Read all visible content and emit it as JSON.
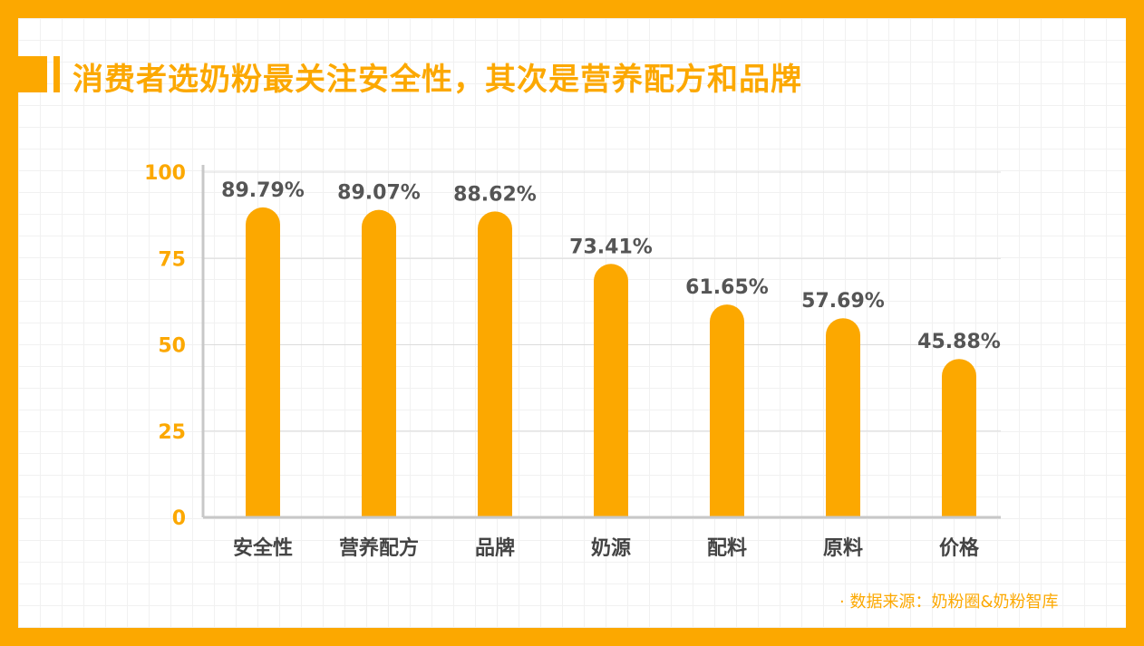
{
  "title": "消费者选奶粉最关注安全性，其次是营养配方和品牌",
  "source": "· 数据来源：奶粉圈&奶粉智库",
  "colors": {
    "accent": "#fca800",
    "label": "#555555",
    "axis": "#c8c8c8"
  },
  "chart_data": {
    "type": "bar",
    "title": "消费者选奶粉最关注安全性，其次是营养配方和品牌",
    "categories": [
      "安全性",
      "营养配方",
      "品牌",
      "奶源",
      "配料",
      "原料",
      "价格"
    ],
    "values": [
      89.79,
      89.07,
      88.62,
      73.41,
      61.65,
      57.69,
      45.88
    ],
    "data_labels": [
      "89.79%",
      "89.07%",
      "88.62%",
      "73.41%",
      "61.65%",
      "57.69%",
      "45.88%"
    ],
    "yticks": [
      0,
      25,
      50,
      75,
      100
    ],
    "ylim": [
      0,
      100
    ],
    "xlabel": "",
    "ylabel": "",
    "grid": true,
    "legend": "none"
  }
}
